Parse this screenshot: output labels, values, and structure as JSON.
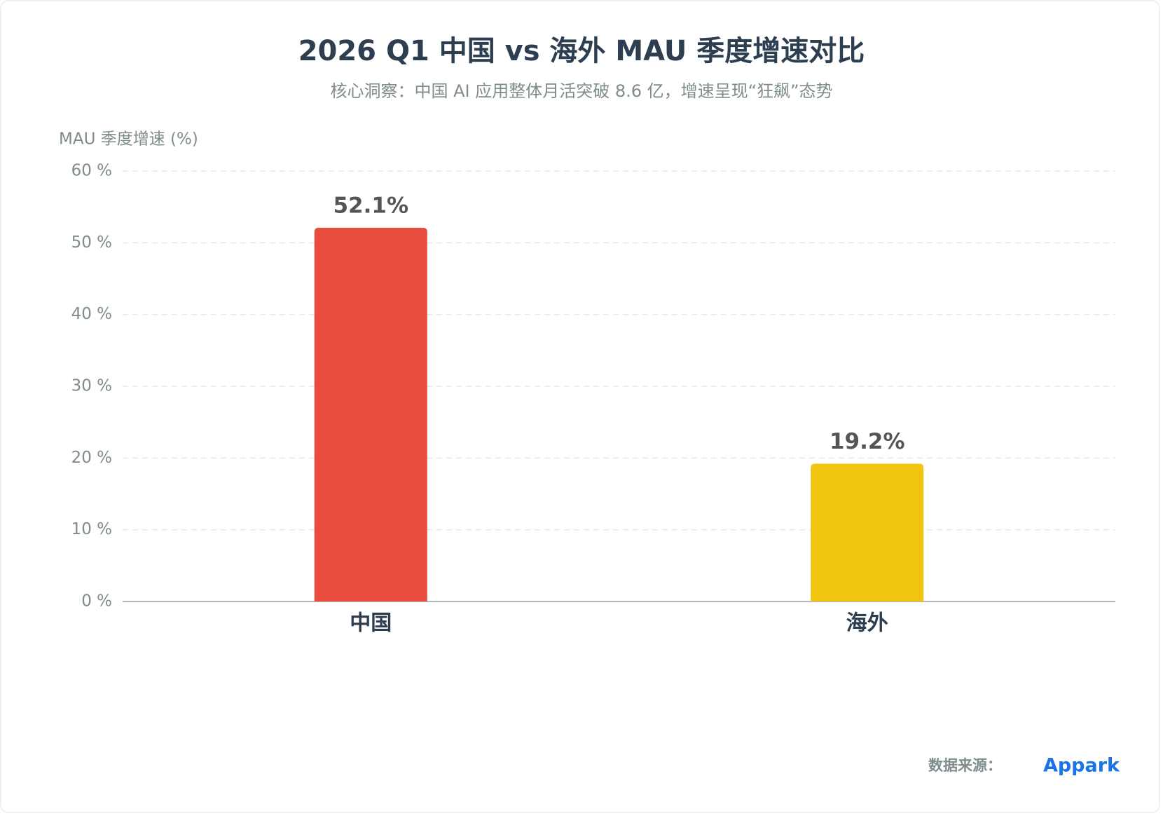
{
  "chart_data": {
    "type": "bar",
    "title": "2026 Q1 中国 vs 海外 MAU 季度增速对比",
    "subtitle": "核心洞察：中国 AI 应用整体月活突破 8.6 亿，增速呈现“狂飙”态势",
    "y_label": "MAU 季度增速 (%)",
    "categories": [
      "中国",
      "海外"
    ],
    "values": [
      52.1,
      19.2
    ],
    "value_labels": [
      "52.1%",
      "19.2%"
    ],
    "colors": [
      "#e74c3c",
      "#f1c40f"
    ],
    "ylim": [
      0,
      60
    ],
    "yticks": [
      {
        "value": 0,
        "label": "0 %"
      },
      {
        "value": 10,
        "label": "10 %"
      },
      {
        "value": 20,
        "label": "20 %"
      },
      {
        "value": 30,
        "label": "30 %"
      },
      {
        "value": 40,
        "label": "40 %"
      },
      {
        "value": 50,
        "label": "50 %"
      },
      {
        "value": 60,
        "label": "60 %"
      }
    ],
    "grid": true,
    "source_label": "数据来源：",
    "source": "Appark"
  }
}
